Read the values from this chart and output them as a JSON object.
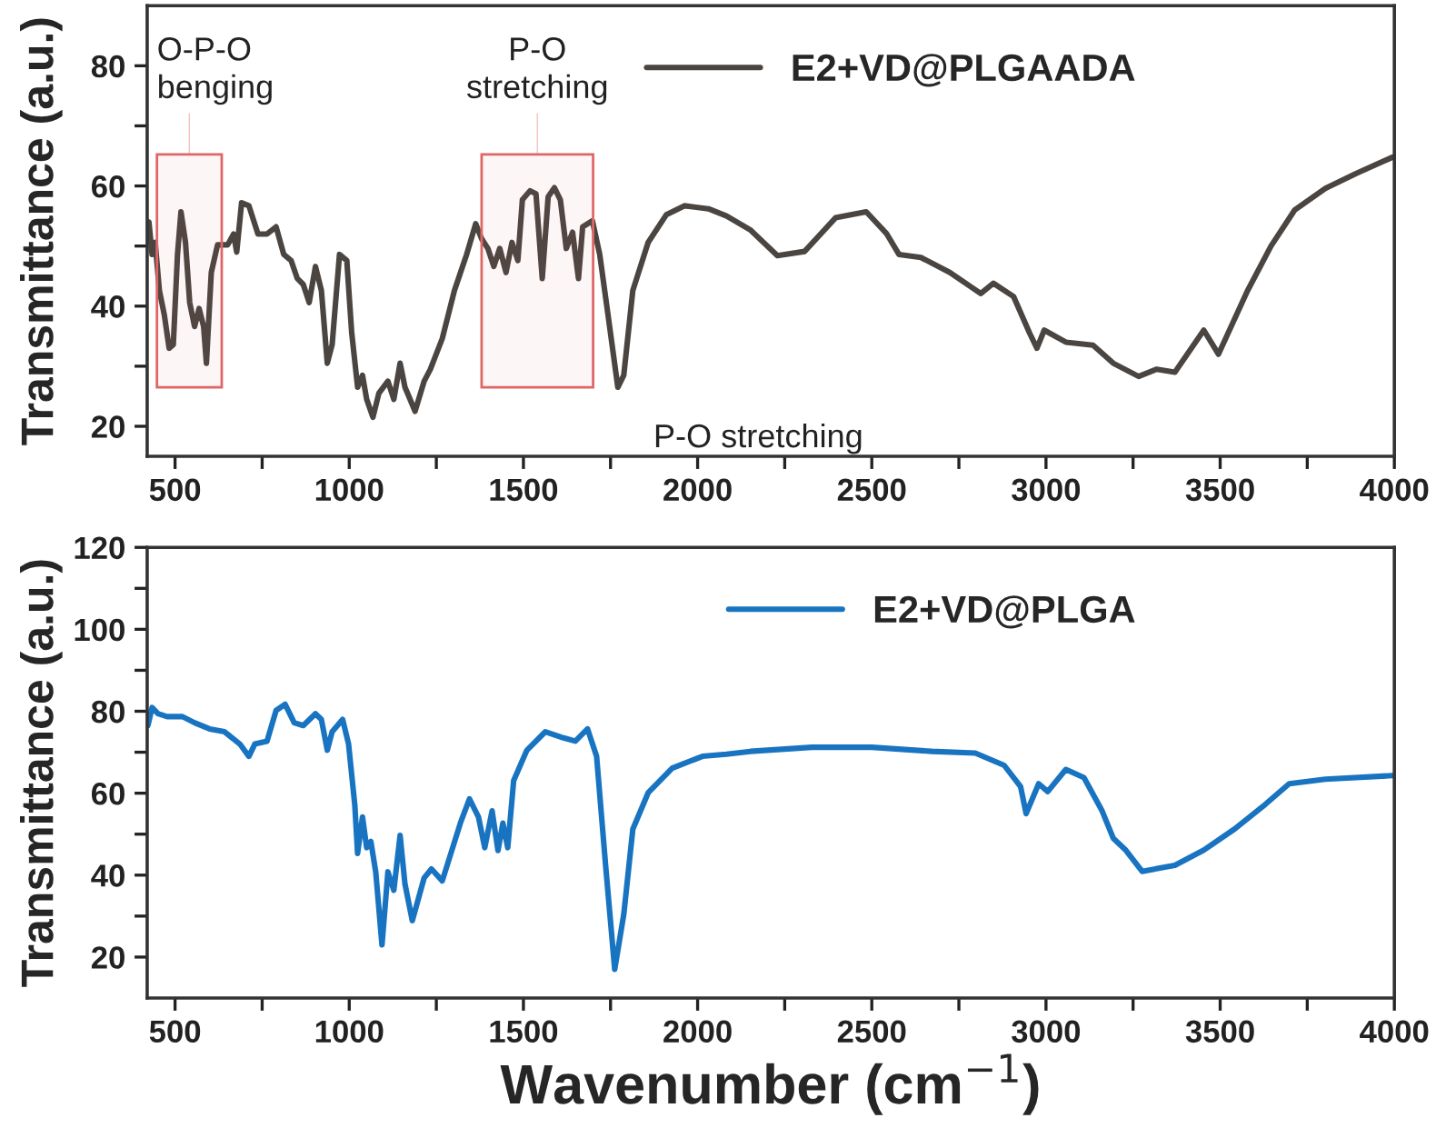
{
  "chart_data": [
    {
      "type": "line",
      "ylabel": "Transmittance (a.u.)",
      "xlim": [
        420,
        4000
      ],
      "ylim": [
        15,
        90
      ],
      "xticks": [
        500,
        {
          "value": 750,
          "label": null
        },
        1000,
        {
          "value": 1250,
          "label": null
        },
        1500,
        {
          "value": 1750,
          "label": null
        },
        2000,
        {
          "value": 2250,
          "label": null
        },
        2500,
        {
          "value": 2750,
          "label": null
        },
        3000,
        {
          "value": 3250,
          "label": null
        },
        3500,
        {
          "value": 3750,
          "label": null
        },
        4000
      ],
      "yticks": [
        20,
        {
          "value": 30,
          "label": null
        },
        40,
        {
          "value": 50,
          "label": null
        },
        60,
        {
          "value": 70,
          "label": null
        },
        80
      ],
      "legend": "top right",
      "series": [
        {
          "name": "E2+VD@PLGAADA",
          "color": "#4a4540",
          "x": [
            420,
            425,
            434,
            443,
            455,
            469,
            483,
            495,
            507,
            517,
            530,
            542,
            556,
            569,
            582,
            590,
            604,
            622,
            651,
            668,
            677,
            691,
            712,
            738,
            764,
            790,
            812,
            833,
            851,
            868,
            885,
            903,
            920,
            937,
            951,
            972,
            993,
            1007,
            1024,
            1038,
            1050,
            1068,
            1085,
            1111,
            1128,
            1146,
            1160,
            1189,
            1215,
            1233,
            1267,
            1302,
            1337,
            1363,
            1380,
            1398,
            1415,
            1432,
            1450,
            1467,
            1484,
            1497,
            1519,
            1536,
            1554,
            1571,
            1589,
            1606,
            1623,
            1641,
            1658,
            1670,
            1698,
            1719,
            1745,
            1771,
            1788,
            1814,
            1858,
            1910,
            1962,
            2031,
            2083,
            2151,
            2229,
            2307,
            2396,
            2484,
            2542,
            2578,
            2641,
            2724,
            2813,
            2849,
            2907,
            2953,
            2974,
            2995,
            3057,
            3135,
            3193,
            3266,
            3318,
            3370,
            3453,
            3495,
            3578,
            3646,
            3714,
            3802,
            3891,
            3995
          ],
          "values": [
            52.7,
            54,
            48.6,
            50.6,
            42.6,
            38.6,
            33,
            33.6,
            48.6,
            55.7,
            50.6,
            40.6,
            36.6,
            39.6,
            36.6,
            30.5,
            45.6,
            50.2,
            50.2,
            52,
            49,
            57.2,
            56.7,
            52,
            52,
            53.2,
            48.6,
            47.6,
            44.6,
            43.6,
            40.6,
            46.6,
            42.6,
            30.5,
            33.6,
            48.6,
            47.6,
            35.6,
            26.5,
            28.5,
            24.5,
            21.5,
            25.5,
            27.5,
            24.5,
            30.5,
            26.5,
            22.5,
            27.5,
            29.5,
            34.6,
            42.6,
            48.6,
            53.7,
            51.2,
            49.6,
            46.6,
            49.6,
            45.6,
            50.6,
            47.6,
            57.7,
            59.2,
            58.7,
            44.6,
            58.2,
            59.7,
            57.7,
            49.6,
            52.3,
            44.6,
            53.2,
            54.2,
            48.6,
            37.6,
            26.5,
            28.5,
            42.6,
            50.6,
            55.2,
            56.7,
            56.2,
            55,
            52.7,
            48.4,
            49.1,
            54.7,
            55.7,
            52.1,
            48.6,
            48.1,
            45.6,
            42.1,
            43.8,
            41.6,
            35.5,
            33,
            36,
            34,
            33.5,
            30.5,
            28.3,
            29.5,
            29,
            36,
            32,
            42.5,
            50,
            56,
            59.6,
            62.1,
            64.8
          ]
        }
      ],
      "bands": [
        {
          "axis": "x",
          "from": 448,
          "to": 634,
          "label": "O-P-O\nbenging",
          "color": "#e06666"
        },
        {
          "axis": "x",
          "from": 1380,
          "to": 1700,
          "label": "P-O\nstretching",
          "color": "#e06666"
        }
      ],
      "annotations": [
        "P-O stretching"
      ]
    },
    {
      "type": "line",
      "ylabel": "Transmittance (a.u.)",
      "xlabel": "Wavenumber (cm$^{−1}$)",
      "xlim": [
        420,
        4000
      ],
      "ylim": [
        10,
        120
      ],
      "xticks": [
        500,
        {
          "value": 750,
          "label": null
        },
        1000,
        {
          "value": 1250,
          "label": null
        },
        1500,
        {
          "value": 1750,
          "label": null
        },
        2000,
        {
          "value": 2250,
          "label": null
        },
        2500,
        {
          "value": 2750,
          "label": null
        },
        3000,
        {
          "value": 3250,
          "label": null
        },
        3500,
        {
          "value": 3750,
          "label": null
        },
        4000
      ],
      "yticks": [
        20,
        {
          "value": 30,
          "label": null
        },
        40,
        {
          "value": 50,
          "label": null
        },
        60,
        {
          "value": 70,
          "label": null
        },
        80,
        {
          "value": 90,
          "label": null
        },
        100,
        {
          "value": 110,
          "label": null
        },
        120
      ],
      "legend": "top right",
      "series": [
        {
          "name": "E2+VD@PLGA",
          "color": "#1874c1",
          "x": [
            422,
            434,
            451,
            477,
            521,
            556,
            599,
            642,
            686,
            712,
            729,
            764,
            790,
            816,
            842,
            868,
            903,
            920,
            937,
            951,
            981,
            998,
            1016,
            1024,
            1038,
            1050,
            1062,
            1076,
            1094,
            1111,
            1128,
            1146,
            1160,
            1181,
            1215,
            1236,
            1267,
            1319,
            1345,
            1371,
            1389,
            1410,
            1427,
            1441,
            1455,
            1472,
            1510,
            1563,
            1615,
            1649,
            1684,
            1710,
            1736,
            1762,
            1788,
            1814,
            1858,
            1927,
            2014,
            2083,
            2151,
            2328,
            2500,
            2672,
            2797,
            2880,
            2927,
            2943,
            2979,
            3005,
            3057,
            3109,
            3161,
            3193,
            3229,
            3276,
            3370,
            3453,
            3542,
            3630,
            3698,
            3802,
            3995
          ],
          "values": [
            76.5,
            80.9,
            79.4,
            78.7,
            78.7,
            77.2,
            75.7,
            75,
            72,
            69,
            72,
            72.7,
            80.2,
            81.7,
            77.2,
            76.5,
            79.4,
            78,
            70.5,
            75,
            78,
            72,
            57.1,
            45.3,
            54.2,
            46.7,
            48.2,
            40.8,
            23,
            40.8,
            36.3,
            49.7,
            37.8,
            28.9,
            39.3,
            41.5,
            38.6,
            52.7,
            58.6,
            54.2,
            46.7,
            55.7,
            46,
            52.7,
            46.7,
            63.1,
            70.5,
            75,
            73.5,
            72.7,
            75.7,
            69,
            42.3,
            17,
            30.4,
            51.2,
            60.1,
            66.1,
            69,
            69.5,
            70.2,
            71.2,
            71.2,
            70.2,
            69.8,
            66.8,
            61.6,
            55,
            62.3,
            60.4,
            65.8,
            63.8,
            55.7,
            49,
            46.1,
            40.9,
            42.4,
            46.1,
            51.3,
            57.3,
            62.3,
            63.4,
            64.3
          ]
        }
      ]
    }
  ]
}
